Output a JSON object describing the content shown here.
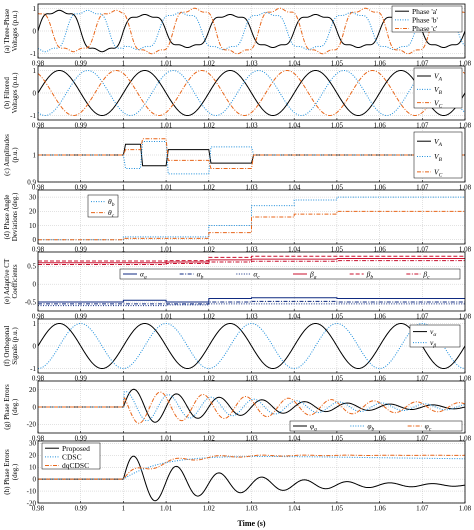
{
  "figure": {
    "x_axis": {
      "title": "Time (s)",
      "range": [
        0.98,
        1.08
      ],
      "ticks": [
        "0.98",
        "0.99",
        "1",
        "1.01",
        "1.02",
        "1.03",
        "1.04",
        "1.05",
        "1.06",
        "1.07",
        "1.08"
      ]
    }
  },
  "chart_data": [
    {
      "type": "line",
      "panel": "(a)",
      "ylabel": [
        "Three-Phase",
        "Voltages (p.u.)"
      ],
      "ylim": [
        -1.2,
        1.2
      ],
      "yticks": [
        "1",
        "0",
        "-1"
      ],
      "xlim": [
        0.98,
        1.08
      ],
      "legend_position": "top-right",
      "series": [
        {
          "name": "Phase 'a'",
          "color": "#000000",
          "dash": "solid",
          "amplitude": [
            1,
            0.8
          ],
          "phase_deg": [
            0,
            0
          ]
        },
        {
          "name": "Phase 'b'",
          "color": "#1f8fdc",
          "dash": "dot",
          "amplitude": [
            1,
            0.9
          ],
          "phase_deg": [
            -120,
            -150
          ]
        },
        {
          "name": "Phase 'c'",
          "color": "#e8661a",
          "dash": "dashdot",
          "amplitude": [
            1,
            1.1
          ],
          "phase_deg": [
            120,
            150
          ]
        }
      ],
      "harmonics": "distorted waveforms"
    },
    {
      "type": "line",
      "panel": "(b)",
      "ylabel": [
        "Filtered",
        "Voltages (p.u.)"
      ],
      "ylim": [
        -1.2,
        1.2
      ],
      "yticks": [
        "1",
        "0",
        "-1"
      ],
      "xlim": [
        0.98,
        1.08
      ],
      "legend_position": "top-right",
      "series": [
        {
          "name": "V",
          "sub": "A",
          "color": "#000000",
          "dash": "solid"
        },
        {
          "name": "V",
          "sub": "B",
          "color": "#1f8fdc",
          "dash": "dot"
        },
        {
          "name": "V",
          "sub": "C",
          "color": "#e8661a",
          "dash": "dashdot"
        }
      ]
    },
    {
      "type": "line",
      "panel": "(c)",
      "ylabel": [
        "Amplitudes",
        "(p.u.)"
      ],
      "ylim": [
        0.9,
        1.1
      ],
      "yticks": [
        "1",
        "0.9"
      ],
      "xlim": [
        0.98,
        1.08
      ],
      "legend_position": "right",
      "series": [
        {
          "name": "V",
          "sub": "A",
          "color": "#000000",
          "dash": "solid",
          "steady": [
            1.0,
            1.0
          ]
        },
        {
          "name": "V",
          "sub": "B",
          "color": "#1f8fdc",
          "dash": "dot",
          "steady": [
            1.0,
            1.0
          ]
        },
        {
          "name": "V",
          "sub": "C",
          "color": "#e8661a",
          "dash": "dashdot",
          "steady": [
            1.0,
            1.0
          ]
        }
      ]
    },
    {
      "type": "line",
      "panel": "(d)",
      "ylabel": [
        "Phase Angle",
        "Deviations (deg.)"
      ],
      "ylim": [
        -3,
        35
      ],
      "yticks": [
        "30",
        "20",
        "10",
        "0"
      ],
      "xlim": [
        0.98,
        1.08
      ],
      "legend_position": "top-left",
      "series": [
        {
          "name": "θ",
          "sub": "b",
          "color": "#1f8fdc",
          "dash": "dot",
          "steps": [
            [
              0.98,
              0
            ],
            [
              1.0,
              0
            ],
            [
              1.0,
              2
            ],
            [
              1.02,
              2
            ],
            [
              1.02,
              10
            ],
            [
              1.03,
              10
            ],
            [
              1.03,
              24
            ],
            [
              1.04,
              24
            ],
            [
              1.04,
              28
            ],
            [
              1.05,
              28
            ],
            [
              1.05,
              30
            ],
            [
              1.08,
              30
            ]
          ]
        },
        {
          "name": "θ",
          "sub": "c",
          "color": "#e8661a",
          "dash": "dashdot",
          "steps": [
            [
              0.98,
              0
            ],
            [
              1.0,
              0
            ],
            [
              1.0,
              1
            ],
            [
              1.02,
              1
            ],
            [
              1.02,
              5
            ],
            [
              1.03,
              5
            ],
            [
              1.03,
              16
            ],
            [
              1.04,
              16
            ],
            [
              1.04,
              18
            ],
            [
              1.05,
              18
            ],
            [
              1.05,
              20
            ],
            [
              1.08,
              20
            ]
          ]
        }
      ]
    },
    {
      "type": "line",
      "panel": "(e)",
      "ylabel": [
        "Adaptive CT",
        "Coefficients"
      ],
      "ylim": [
        -0.75,
        0.9
      ],
      "yticks": [
        "0.5",
        "0",
        "-0.5"
      ],
      "xlim": [
        0.98,
        1.08
      ],
      "legend_position": "middle",
      "series": [
        {
          "name": "α",
          "sub": "a",
          "color": "#0f2a80",
          "dash": "solid",
          "levels": [
            -0.5,
            -0.45,
            -0.5,
            -0.4,
            -0.38,
            -0.4
          ]
        },
        {
          "name": "α",
          "sub": "b",
          "color": "#0f2a80",
          "dash": "dashdot",
          "levels": [
            -0.55,
            -0.55,
            -0.55,
            -0.5,
            -0.48,
            -0.5
          ]
        },
        {
          "name": "α",
          "sub": "c",
          "color": "#0f2a80",
          "dash": "dot",
          "levels": [
            -0.6,
            -0.6,
            -0.58,
            -0.55,
            -0.55,
            -0.55
          ]
        },
        {
          "name": "β",
          "sub": "a",
          "color": "#c8102e",
          "dash": "solid",
          "levels": [
            0.6,
            0.6,
            0.62,
            0.68,
            0.7,
            0.72
          ]
        },
        {
          "name": "β",
          "sub": "b",
          "color": "#c8102e",
          "dash": "dash",
          "levels": [
            0.65,
            0.65,
            0.66,
            0.75,
            0.78,
            0.78
          ]
        },
        {
          "name": "β",
          "sub": "c",
          "color": "#c8102e",
          "dash": "dashdot",
          "levels": [
            0.55,
            0.55,
            0.58,
            0.62,
            0.64,
            0.66
          ]
        }
      ]
    },
    {
      "type": "line",
      "panel": "(f)",
      "ylabel": [
        "Orthogonal",
        "Signals (p.u.)"
      ],
      "ylim": [
        -1.2,
        1.2
      ],
      "yticks": [
        "1",
        "0",
        "-1"
      ],
      "xlim": [
        0.98,
        1.08
      ],
      "legend_position": "right",
      "series": [
        {
          "name": "v",
          "sub": "α",
          "color": "#000000",
          "dash": "solid"
        },
        {
          "name": "v",
          "sub": "β",
          "color": "#1f8fdc",
          "dash": "dot"
        }
      ]
    },
    {
      "type": "line",
      "panel": "(g)",
      "ylabel": [
        "Phase Errors",
        "(deg.)"
      ],
      "ylim": [
        -30,
        30
      ],
      "yticks": [
        "20",
        "0",
        "-20"
      ],
      "xlim": [
        0.98,
        1.08
      ],
      "legend_position": "bottom-right",
      "series": [
        {
          "name": "φ",
          "sub": "a",
          "color": "#000000",
          "dash": "solid"
        },
        {
          "name": "φ",
          "sub": "b",
          "color": "#1f8fdc",
          "dash": "dot"
        },
        {
          "name": "φ",
          "sub": "c",
          "color": "#e8661a",
          "dash": "dashdot"
        }
      ]
    },
    {
      "type": "line",
      "panel": "(h)",
      "ylabel": [
        "Phase Errors",
        "(deg.)"
      ],
      "ylim": [
        -20,
        32
      ],
      "yticks": [
        "30",
        "20",
        "10",
        "0",
        "-10",
        "-20"
      ],
      "xlim": [
        0.98,
        1.08
      ],
      "legend_position": "top-left",
      "series": [
        {
          "name": "Proposed",
          "color": "#000000",
          "dash": "solid"
        },
        {
          "name": "CDSC",
          "color": "#1f8fdc",
          "dash": "dot"
        },
        {
          "name": "dqCDSC",
          "color": "#e8661a",
          "dash": "dashdot"
        }
      ]
    }
  ]
}
